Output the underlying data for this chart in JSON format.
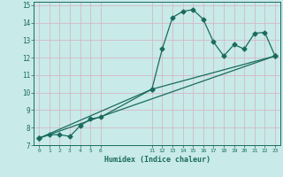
{
  "xlabel": "Humidex (Indice chaleur)",
  "background_color": "#c8eae8",
  "grid_color": "#d4b8c8",
  "line_color": "#1a6b5e",
  "x_labels": [
    "0",
    "1",
    "2",
    "3",
    "4",
    "5",
    "6",
    "",
    "",
    "",
    "",
    "11",
    "12",
    "13",
    "14",
    "15",
    "16",
    "17",
    "18",
    "19",
    "20",
    "21",
    "22",
    "23"
  ],
  "xlim": [
    -0.5,
    23.5
  ],
  "ylim": [
    7,
    15.2
  ],
  "line1_x": [
    0,
    1,
    2,
    3,
    4,
    5,
    6,
    11,
    12,
    13,
    14,
    15,
    16,
    17,
    18,
    19,
    20,
    21,
    22,
    23
  ],
  "line1_y": [
    7.4,
    7.6,
    7.6,
    7.5,
    8.1,
    8.5,
    8.6,
    10.2,
    12.5,
    14.3,
    14.65,
    14.75,
    14.2,
    12.9,
    12.1,
    12.75,
    12.5,
    13.4,
    13.45,
    12.1
  ],
  "line2_x": [
    0,
    23
  ],
  "line2_y": [
    7.4,
    12.1
  ],
  "line3_x": [
    0,
    11,
    23
  ],
  "line3_y": [
    7.4,
    10.2,
    12.1
  ],
  "yticks": [
    7,
    8,
    9,
    10,
    11,
    12,
    13,
    14,
    15
  ],
  "xtick_positions": [
    0,
    1,
    2,
    3,
    4,
    5,
    6,
    11,
    12,
    13,
    14,
    15,
    16,
    17,
    18,
    19,
    20,
    21,
    22,
    23
  ]
}
